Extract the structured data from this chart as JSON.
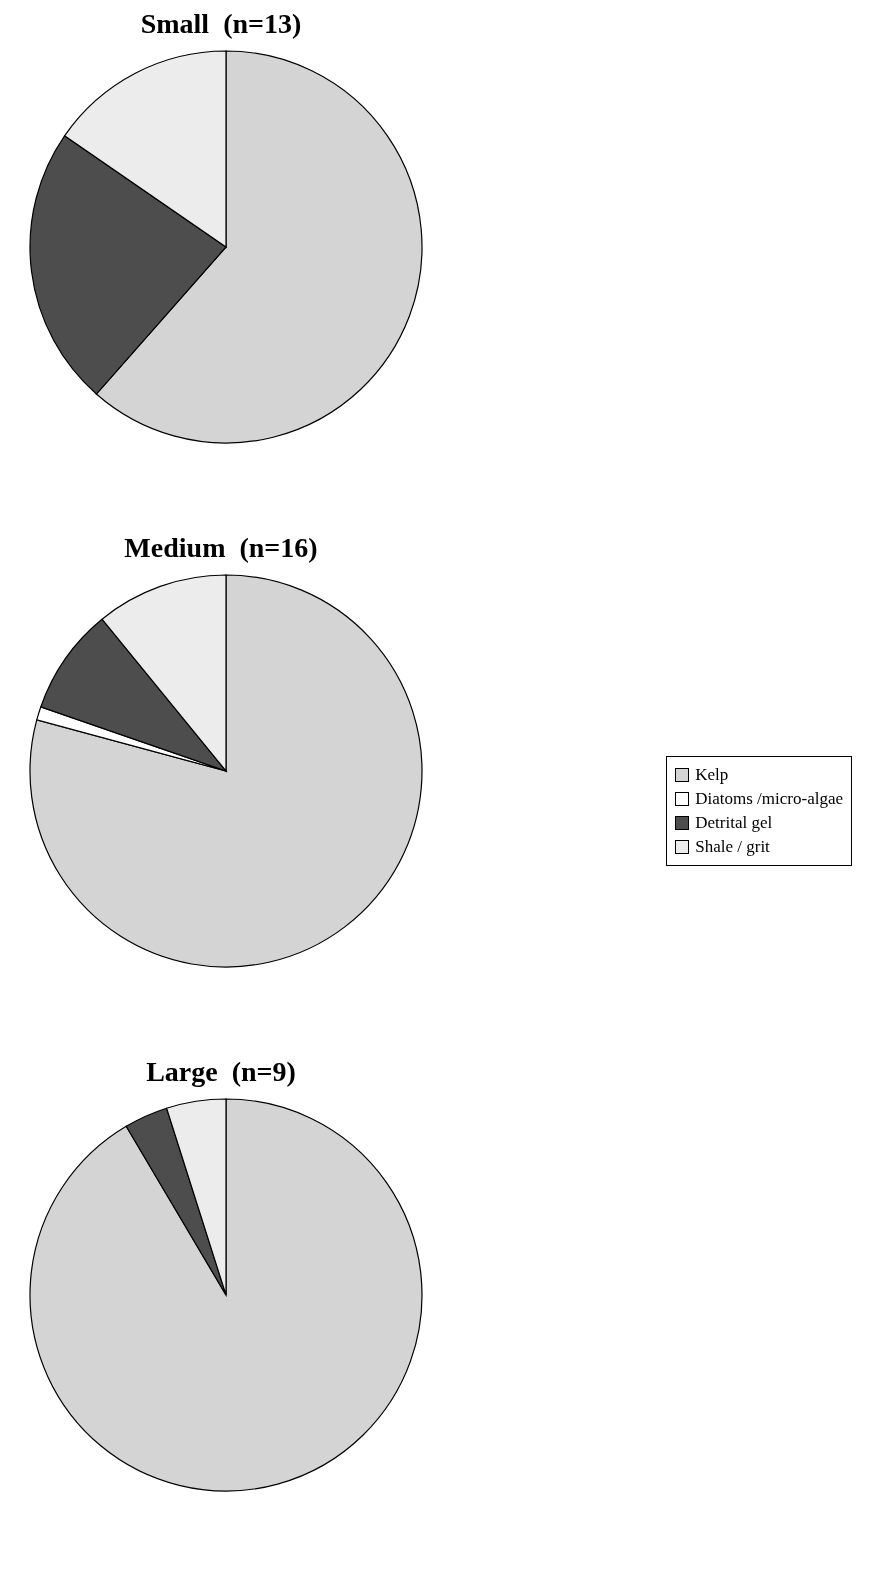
{
  "chart_data": [
    {
      "type": "pie",
      "title": "Small  (n=13)",
      "categories": [
        null,
        null,
        null,
        null
      ],
      "values": [
        61.5,
        0,
        23.1,
        15.4
      ],
      "colors": [
        "#d4d4d4",
        "#ffffff",
        "#4d4d4d",
        "#ececec"
      ],
      "legend": false
    },
    {
      "type": "pie",
      "title": "Medium  (n=16)",
      "categories": [
        "Kelp",
        "Diatoms /micro-algae",
        "Detrital gel",
        "Shale / grit"
      ],
      "values": [
        79.2,
        1.1,
        8.8,
        10.9
      ],
      "colors": [
        "#d4d4d4",
        "#ffffff",
        "#4d4d4d",
        "#ececec"
      ],
      "legend": "right"
    },
    {
      "type": "pie",
      "title": "Large  (n=9)",
      "categories": [
        null,
        null,
        null,
        null
      ],
      "values": [
        91.5,
        0,
        3.6,
        4.9
      ],
      "colors": [
        "#d4d4d4",
        "#ffffff",
        "#4d4d4d",
        "#ececec"
      ],
      "legend": false
    }
  ]
}
